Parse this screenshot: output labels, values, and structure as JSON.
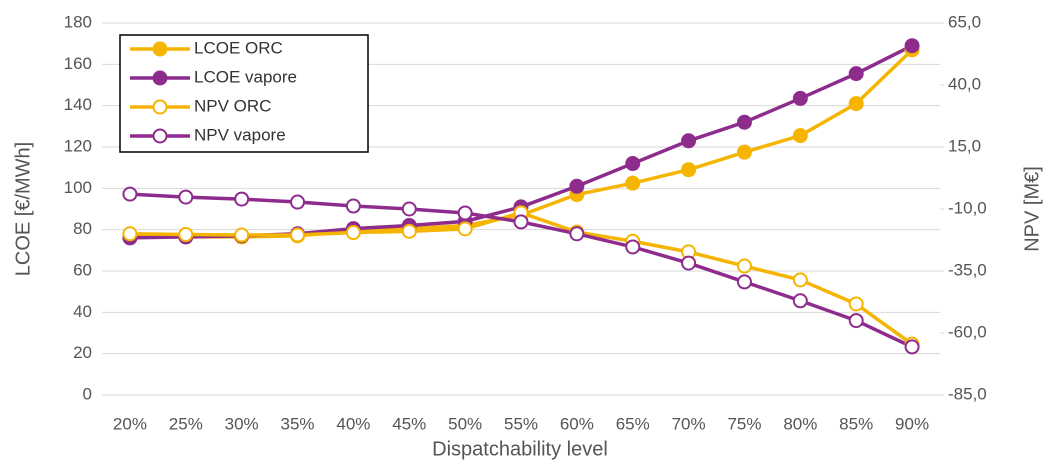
{
  "chart_data": {
    "type": "line",
    "xlabel": "Dispatchability level",
    "ylabel": "LCOE [€/MWh]",
    "y2label": "NPV [M€]",
    "categories": [
      "20%",
      "25%",
      "30%",
      "35%",
      "40%",
      "45%",
      "50%",
      "55%",
      "60%",
      "65%",
      "70%",
      "75%",
      "80%",
      "85%",
      "90%"
    ],
    "series": [
      {
        "name": "LCOE ORC",
        "color": "#F5B400",
        "marker": "filled",
        "values": [
          77,
          76.5,
          76.5,
          77,
          79.5,
          80.5,
          82,
          87,
          97,
          102.5,
          109,
          117.5,
          125.5,
          141,
          167
        ]
      },
      {
        "name": "LCOE vapore",
        "color": "#8E2C8E",
        "marker": "filled",
        "values": [
          76,
          76.5,
          77,
          78,
          80.5,
          82,
          84,
          91,
          101,
          112,
          123,
          132,
          143.5,
          155.5,
          169
        ]
      },
      {
        "name": "NPV ORC",
        "color": "#F5B400",
        "marker": "open",
        "axis": "y2",
        "values": [
          -20,
          -20.3,
          -20.5,
          -20.5,
          -19.5,
          -19,
          -18,
          -11.5,
          -19.3,
          -23,
          -27.3,
          -33,
          -38.6,
          -48.3,
          -64.5
        ]
      },
      {
        "name": "NPV vapore",
        "color": "#8E2C8E",
        "marker": "open",
        "axis": "y2",
        "values": [
          -4,
          -5.2,
          -6,
          -7.2,
          -8.8,
          -10,
          -11.6,
          -15.2,
          -20,
          -25.3,
          -31.8,
          -39.4,
          -47,
          -55,
          -65.6
        ]
      }
    ],
    "ylim": [
      0,
      180
    ],
    "yticks": [
      0,
      20,
      40,
      60,
      80,
      100,
      120,
      140,
      160,
      180
    ],
    "y2lim": [
      -85,
      65
    ],
    "y2ticks": [
      {
        "value": -85,
        "label": "-85,0"
      },
      {
        "value": -60,
        "label": "-60,0"
      },
      {
        "value": -35,
        "label": "-35,0"
      },
      {
        "value": -10,
        "label": "-10,0"
      },
      {
        "value": 15,
        "label": "15,0"
      },
      {
        "value": 40,
        "label": "40,0"
      },
      {
        "value": 65,
        "label": "65,0"
      }
    ],
    "grid": true,
    "legend": "upper left"
  }
}
